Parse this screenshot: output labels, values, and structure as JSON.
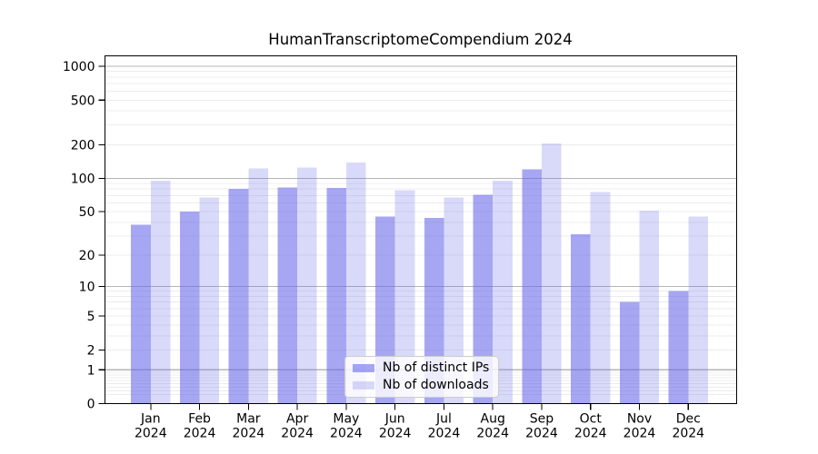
{
  "chart_data": {
    "type": "bar",
    "title": "HumanTranscriptomeCompendium 2024",
    "xlabel": "",
    "ylabel": "",
    "y_scale": "log1p (y position proportional to log10(1+value), 0 at baseline)",
    "y_ticks": [
      0,
      1,
      2,
      5,
      10,
      20,
      50,
      100,
      200,
      500,
      1000
    ],
    "ylim": [
      0,
      1240
    ],
    "grid": {
      "show": true,
      "orientation": "horizontal",
      "major_color": "#b5b5b5",
      "minor_color": "#ececec"
    },
    "categories": [
      "Jan 2024",
      "Feb 2024",
      "Mar 2024",
      "Apr 2024",
      "May 2024",
      "Jun 2024",
      "Jul 2024",
      "Aug 2024",
      "Sep 2024",
      "Oct 2024",
      "Nov 2024",
      "Dec 2024"
    ],
    "series": [
      {
        "name": "Nb of distinct IPs",
        "color": "rgba(102,102,235,0.58)",
        "solid_color": "#a6a6f2",
        "values": [
          38,
          50,
          80,
          83,
          82,
          45,
          44,
          71,
          120,
          31,
          7,
          9
        ]
      },
      {
        "name": "Nb of downloads",
        "color": "rgba(102,102,235,0.25)",
        "solid_color": "#d9d9fa",
        "values": [
          95,
          67,
          123,
          125,
          139,
          78,
          67,
          95,
          205,
          75,
          51,
          45
        ]
      }
    ],
    "legend_position": "inside, lower center",
    "background": "#ffffff",
    "axis_color": "#000000",
    "text_color": "#000000"
  }
}
